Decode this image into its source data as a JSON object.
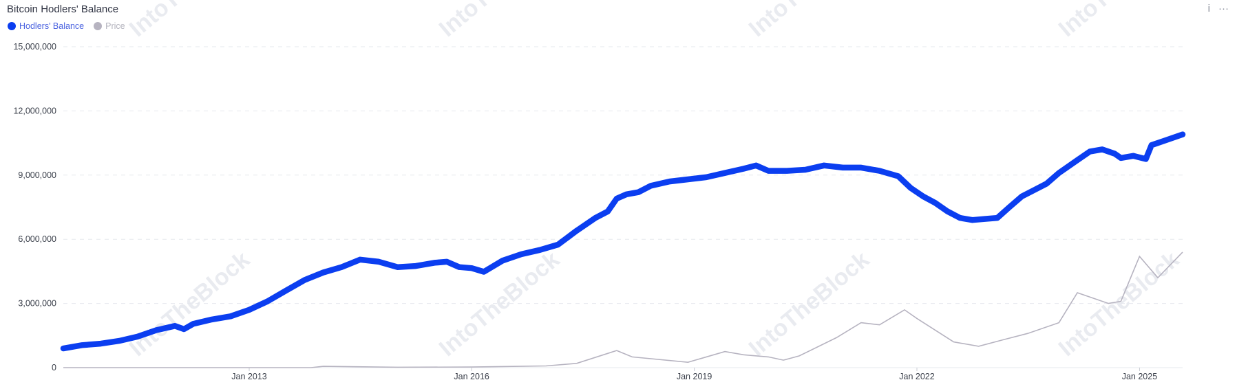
{
  "chart_data": {
    "type": "line",
    "title": "Bitcoin Hodlers' Balance",
    "watermark": "IntoTheBlock",
    "colors": {
      "hodlers": "#0b3ef0",
      "price": "#b6b3c0",
      "grid": "#e6e8ee"
    },
    "legend": {
      "placement": "top-left"
    },
    "x_axis": {
      "type": "date",
      "range": [
        "2010-07-01",
        "2025-08-01"
      ],
      "ticks": [
        {
          "date": "2013-01-01",
          "label": "Jan 2013"
        },
        {
          "date": "2016-01-01",
          "label": "Jan 2016"
        },
        {
          "date": "2019-01-01",
          "label": "Jan 2019"
        },
        {
          "date": "2022-01-01",
          "label": "Jan 2022"
        },
        {
          "date": "2025-01-01",
          "label": "Jan 2025"
        }
      ]
    },
    "y_axis": {
      "range": [
        0,
        15000000
      ],
      "ticks": [
        {
          "value": 0,
          "label": "0"
        },
        {
          "value": 3000000,
          "label": "3,000,000"
        },
        {
          "value": 6000000,
          "label": "6,000,000"
        },
        {
          "value": 9000000,
          "label": "9,000,000"
        },
        {
          "value": 12000000,
          "label": "12,000,000"
        },
        {
          "value": 15000000,
          "label": "15,000,000"
        }
      ],
      "grid": true
    },
    "series": [
      {
        "name": "Hodlers' Balance",
        "points": [
          [
            "2010-07-01",
            900000
          ],
          [
            "2010-10-01",
            1050000
          ],
          [
            "2011-01-01",
            1120000
          ],
          [
            "2011-04-01",
            1250000
          ],
          [
            "2011-07-01",
            1450000
          ],
          [
            "2011-10-01",
            1750000
          ],
          [
            "2012-01-01",
            1950000
          ],
          [
            "2012-02-15",
            1800000
          ],
          [
            "2012-04-01",
            2050000
          ],
          [
            "2012-07-01",
            2250000
          ],
          [
            "2012-10-01",
            2400000
          ],
          [
            "2013-01-01",
            2700000
          ],
          [
            "2013-04-01",
            3100000
          ],
          [
            "2013-07-01",
            3600000
          ],
          [
            "2013-10-01",
            4100000
          ],
          [
            "2014-01-01",
            4450000
          ],
          [
            "2014-04-01",
            4700000
          ],
          [
            "2014-07-01",
            5050000
          ],
          [
            "2014-10-01",
            4950000
          ],
          [
            "2015-01-01",
            4700000
          ],
          [
            "2015-04-01",
            4750000
          ],
          [
            "2015-07-01",
            4900000
          ],
          [
            "2015-09-01",
            4950000
          ],
          [
            "2015-11-01",
            4700000
          ],
          [
            "2016-01-01",
            4650000
          ],
          [
            "2016-03-01",
            4480000
          ],
          [
            "2016-06-01",
            5000000
          ],
          [
            "2016-09-01",
            5300000
          ],
          [
            "2016-12-01",
            5500000
          ],
          [
            "2017-03-01",
            5750000
          ],
          [
            "2017-06-01",
            6400000
          ],
          [
            "2017-09-01",
            7000000
          ],
          [
            "2017-11-01",
            7300000
          ],
          [
            "2017-12-15",
            7900000
          ],
          [
            "2018-02-01",
            8100000
          ],
          [
            "2018-04-01",
            8200000
          ],
          [
            "2018-06-01",
            8500000
          ],
          [
            "2018-09-01",
            8700000
          ],
          [
            "2018-12-01",
            8800000
          ],
          [
            "2019-03-01",
            8900000
          ],
          [
            "2019-06-01",
            9100000
          ],
          [
            "2019-09-01",
            9300000
          ],
          [
            "2019-11-01",
            9450000
          ],
          [
            "2020-01-01",
            9200000
          ],
          [
            "2020-04-01",
            9200000
          ],
          [
            "2020-07-01",
            9250000
          ],
          [
            "2020-10-01",
            9450000
          ],
          [
            "2021-01-01",
            9350000
          ],
          [
            "2021-04-01",
            9350000
          ],
          [
            "2021-07-01",
            9200000
          ],
          [
            "2021-10-01",
            8950000
          ],
          [
            "2021-12-01",
            8400000
          ],
          [
            "2022-02-01",
            8000000
          ],
          [
            "2022-04-01",
            7700000
          ],
          [
            "2022-06-01",
            7300000
          ],
          [
            "2022-08-01",
            7000000
          ],
          [
            "2022-10-01",
            6900000
          ],
          [
            "2022-12-01",
            6950000
          ],
          [
            "2023-02-01",
            7000000
          ],
          [
            "2023-04-01",
            7500000
          ],
          [
            "2023-06-01",
            8000000
          ],
          [
            "2023-08-01",
            8300000
          ],
          [
            "2023-10-01",
            8600000
          ],
          [
            "2023-12-01",
            9100000
          ],
          [
            "2024-03-01",
            9700000
          ],
          [
            "2024-05-01",
            10100000
          ],
          [
            "2024-07-01",
            10200000
          ],
          [
            "2024-09-01",
            10000000
          ],
          [
            "2024-10-01",
            9800000
          ],
          [
            "2024-12-01",
            9900000
          ],
          [
            "2025-02-01",
            9750000
          ],
          [
            "2025-03-01",
            10400000
          ],
          [
            "2025-05-01",
            10600000
          ],
          [
            "2025-08-01",
            10900000
          ]
        ]
      },
      {
        "name": "Price",
        "points": [
          [
            "2010-07-01",
            0
          ],
          [
            "2013-11-01",
            0
          ],
          [
            "2014-01-01",
            60000
          ],
          [
            "2015-01-01",
            20000
          ],
          [
            "2016-01-01",
            30000
          ],
          [
            "2017-01-01",
            80000
          ],
          [
            "2017-06-01",
            200000
          ],
          [
            "2017-12-15",
            800000
          ],
          [
            "2018-03-01",
            500000
          ],
          [
            "2018-12-01",
            250000
          ],
          [
            "2019-06-01",
            750000
          ],
          [
            "2019-09-01",
            600000
          ],
          [
            "2020-01-01",
            500000
          ],
          [
            "2020-03-15",
            350000
          ],
          [
            "2020-06-01",
            550000
          ],
          [
            "2020-12-01",
            1400000
          ],
          [
            "2021-04-01",
            2100000
          ],
          [
            "2021-07-01",
            2000000
          ],
          [
            "2021-11-01",
            2700000
          ],
          [
            "2022-01-01",
            2300000
          ],
          [
            "2022-07-01",
            1200000
          ],
          [
            "2022-11-01",
            1000000
          ],
          [
            "2023-03-01",
            1300000
          ],
          [
            "2023-07-01",
            1600000
          ],
          [
            "2023-12-01",
            2100000
          ],
          [
            "2024-03-01",
            3500000
          ],
          [
            "2024-08-01",
            3000000
          ],
          [
            "2024-10-01",
            3100000
          ],
          [
            "2024-12-01",
            4500000
          ],
          [
            "2025-01-01",
            5200000
          ],
          [
            "2025-04-01",
            4200000
          ],
          [
            "2025-08-01",
            5400000
          ]
        ]
      }
    ]
  },
  "ui": {
    "info_icon": "info-icon",
    "more_icon": "more-icon",
    "info_glyph": "i",
    "more_glyph": "···"
  }
}
